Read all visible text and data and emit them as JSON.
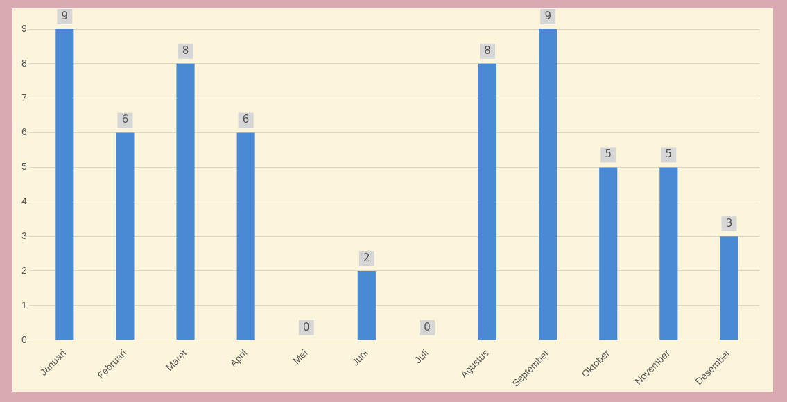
{
  "chart_data": {
    "type": "bar",
    "categories": [
      "Januari",
      "Februari",
      "Maret",
      "April",
      "Mei",
      "Juni",
      "Juli",
      "Agustus",
      "September",
      "Oktober",
      "November",
      "Desember"
    ],
    "values": [
      9,
      6,
      8,
      6,
      0,
      2,
      0,
      8,
      9,
      5,
      5,
      3
    ],
    "color": "#4a8ad4",
    "ylim": [
      0,
      9
    ],
    "yticks": [
      0,
      1,
      2,
      3,
      4,
      5,
      6,
      7,
      8,
      9
    ],
    "grid": "y",
    "data_labels": true,
    "legend": false
  }
}
